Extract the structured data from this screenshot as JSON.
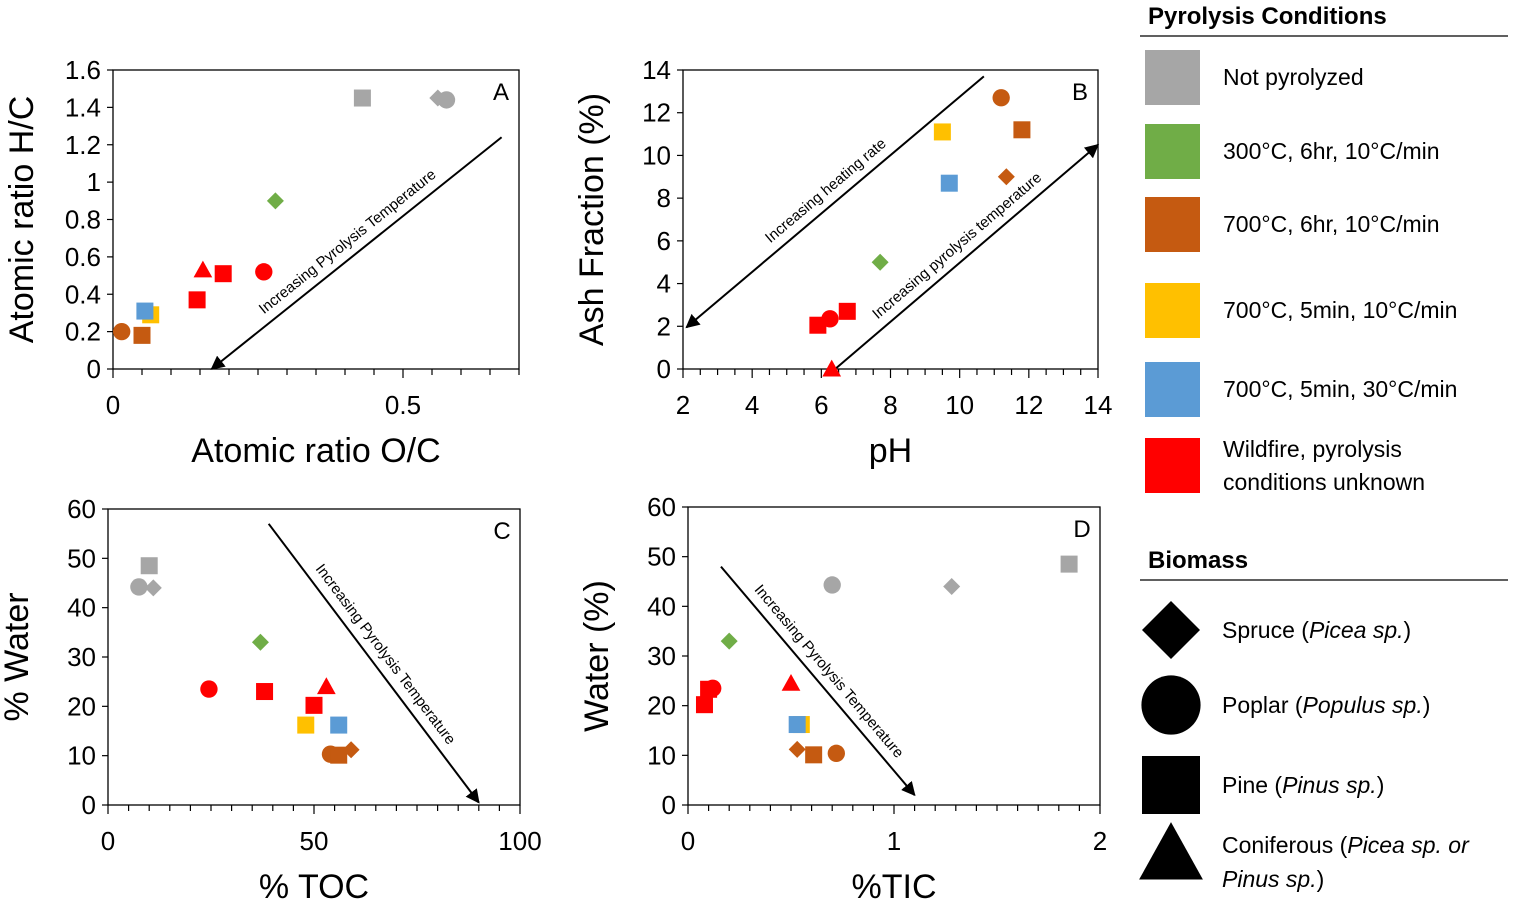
{
  "colors": {
    "not_pyrolyzed": "#a6a6a6",
    "c300_6hr": "#70ad47",
    "c700_6hr": "#c55a11",
    "c700_5min_10": "#ffc000",
    "c700_5min_30": "#5b9bd5",
    "wildfire": "#ff0000"
  },
  "legend": {
    "conditions_title": "Pyrolysis Conditions",
    "conditions": [
      {
        "key": "not_pyrolyzed",
        "label": [
          "Not pyrolyzed"
        ]
      },
      {
        "key": "c300_6hr",
        "label": [
          "300°C, 6hr, 10°C/min"
        ]
      },
      {
        "key": "c700_6hr",
        "label": [
          "700°C, 6hr, 10°C/min"
        ]
      },
      {
        "key": "c700_5min_10",
        "label": [
          "700°C, 5min, 10°C/min"
        ]
      },
      {
        "key": "c700_5min_30",
        "label": [
          "700°C, 5min, 30°C/min"
        ]
      },
      {
        "key": "wildfire",
        "label": [
          "Wildfire, pyrolysis",
          "conditions unknown"
        ]
      }
    ],
    "biomass_title": "Biomass",
    "biomass": [
      {
        "shape": "diamond",
        "name": "Spruce",
        "latin": "Picea sp."
      },
      {
        "shape": "circle",
        "name": "Poplar",
        "latin": "Populus sp."
      },
      {
        "shape": "square",
        "name": "Pine",
        "latin": "Pinus sp."
      },
      {
        "shape": "triangle",
        "name": "Coniferous",
        "latin": "Picea sp. or",
        "latin2": "Pinus sp."
      }
    ]
  },
  "chart_data": [
    {
      "type": "scatter",
      "panel": "A",
      "xlabel": "Atomic ratio O/C",
      "ylabel": "Atomic ratio H/C",
      "xlim": [
        0,
        0.7
      ],
      "ylim": [
        0,
        1.6
      ],
      "xticks": [
        0,
        0.5
      ],
      "xtick_labels": [
        "0",
        "0.5"
      ],
      "xminor": 0.05,
      "yticks": [
        0,
        0.2,
        0.4,
        0.6,
        0.8,
        1,
        1.2,
        1.4,
        1.6
      ],
      "ytick_labels": [
        "0",
        "0.2",
        "0.4",
        "0.6",
        "0.8",
        "1",
        "1.2",
        "1.4",
        "1.6"
      ],
      "annotation": {
        "text": "Increasing Pyrolysis Temperature",
        "from": [
          0.67,
          1.24
        ],
        "to": [
          0.17,
          0
        ]
      },
      "points": [
        {
          "x": 0.43,
          "y": 1.45,
          "shape": "square",
          "cond": "not_pyrolyzed"
        },
        {
          "x": 0.56,
          "y": 1.45,
          "shape": "diamond",
          "cond": "not_pyrolyzed"
        },
        {
          "x": 0.575,
          "y": 1.44,
          "shape": "circle",
          "cond": "not_pyrolyzed"
        },
        {
          "x": 0.28,
          "y": 0.9,
          "shape": "diamond",
          "cond": "c300_6hr"
        },
        {
          "x": 0.155,
          "y": 0.53,
          "shape": "triangle",
          "cond": "wildfire"
        },
        {
          "x": 0.19,
          "y": 0.51,
          "shape": "square",
          "cond": "wildfire"
        },
        {
          "x": 0.26,
          "y": 0.52,
          "shape": "circle",
          "cond": "wildfire"
        },
        {
          "x": 0.145,
          "y": 0.37,
          "shape": "square",
          "cond": "wildfire"
        },
        {
          "x": 0.065,
          "y": 0.29,
          "shape": "square",
          "cond": "c700_5min_10"
        },
        {
          "x": 0.055,
          "y": 0.31,
          "shape": "square",
          "cond": "c700_5min_30"
        },
        {
          "x": 0.015,
          "y": 0.2,
          "shape": "circle",
          "cond": "c700_6hr"
        },
        {
          "x": 0.05,
          "y": 0.18,
          "shape": "square",
          "cond": "c700_6hr"
        }
      ]
    },
    {
      "type": "scatter",
      "panel": "B",
      "xlabel": "pH",
      "ylabel": "Ash Fraction (%)",
      "xlim": [
        2,
        14
      ],
      "ylim": [
        0,
        14
      ],
      "xticks": [
        2,
        4,
        6,
        8,
        10,
        12,
        14
      ],
      "xtick_labels": [
        "2",
        "4",
        "6",
        "8",
        "10",
        "12",
        "14"
      ],
      "xminor": 0.5,
      "yticks": [
        0,
        2,
        4,
        6,
        8,
        10,
        12,
        14
      ],
      "ytick_labels": [
        "0",
        "2",
        "4",
        "6",
        "8",
        "10",
        "12",
        "14"
      ],
      "annotations": [
        {
          "text": "Increasing heating rate",
          "from": [
            10.7,
            13.7
          ],
          "to": [
            2.1,
            1.95
          ]
        },
        {
          "text": "Increasing pyrolysis temperature",
          "from": [
            6.4,
            0
          ],
          "to": [
            14,
            10.5
          ]
        }
      ],
      "points": [
        {
          "x": 11.2,
          "y": 12.7,
          "shape": "circle",
          "cond": "c700_6hr"
        },
        {
          "x": 11.8,
          "y": 11.2,
          "shape": "square",
          "cond": "c700_6hr"
        },
        {
          "x": 11.35,
          "y": 9.0,
          "shape": "diamond",
          "cond": "c700_6hr"
        },
        {
          "x": 9.5,
          "y": 11.1,
          "shape": "square",
          "cond": "c700_5min_10"
        },
        {
          "x": 9.7,
          "y": 8.7,
          "shape": "square",
          "cond": "c700_5min_30"
        },
        {
          "x": 7.7,
          "y": 5.0,
          "shape": "diamond",
          "cond": "c300_6hr"
        },
        {
          "x": 6.25,
          "y": 2.35,
          "shape": "circle",
          "cond": "wildfire"
        },
        {
          "x": 5.9,
          "y": 2.05,
          "shape": "square",
          "cond": "wildfire"
        },
        {
          "x": 6.75,
          "y": 2.7,
          "shape": "square",
          "cond": "wildfire"
        },
        {
          "x": 6.3,
          "y": 0.0,
          "shape": "triangle",
          "cond": "wildfire"
        }
      ]
    },
    {
      "type": "scatter",
      "panel": "C",
      "xlabel": "% TOC",
      "ylabel": "% Water",
      "xlim": [
        0,
        100
      ],
      "ylim": [
        0,
        60
      ],
      "xticks": [
        0,
        50,
        100
      ],
      "xtick_labels": [
        "0",
        "50",
        "100"
      ],
      "xminor": 5,
      "yticks": [
        0,
        10,
        20,
        30,
        40,
        50,
        60
      ],
      "ytick_labels": [
        "0",
        "10",
        "20",
        "30",
        "40",
        "50",
        "60"
      ],
      "annotation": {
        "text": "Increasing Pyrolysis Temperature",
        "from": [
          39,
          57
        ],
        "to": [
          90,
          0.5
        ]
      },
      "points": [
        {
          "x": 10,
          "y": 48.5,
          "shape": "square",
          "cond": "not_pyrolyzed"
        },
        {
          "x": 7.5,
          "y": 44.2,
          "shape": "circle",
          "cond": "not_pyrolyzed"
        },
        {
          "x": 11,
          "y": 44,
          "shape": "diamond",
          "cond": "not_pyrolyzed"
        },
        {
          "x": 37,
          "y": 33,
          "shape": "diamond",
          "cond": "c300_6hr"
        },
        {
          "x": 24.5,
          "y": 23.5,
          "shape": "circle",
          "cond": "wildfire"
        },
        {
          "x": 38,
          "y": 23,
          "shape": "square",
          "cond": "wildfire"
        },
        {
          "x": 53,
          "y": 24,
          "shape": "triangle",
          "cond": "wildfire"
        },
        {
          "x": 50,
          "y": 20.2,
          "shape": "square",
          "cond": "wildfire"
        },
        {
          "x": 48,
          "y": 16.2,
          "shape": "square",
          "cond": "c700_5min_10"
        },
        {
          "x": 56,
          "y": 16.2,
          "shape": "square",
          "cond": "c700_5min_30"
        },
        {
          "x": 54,
          "y": 10.3,
          "shape": "circle",
          "cond": "c700_6hr"
        },
        {
          "x": 56,
          "y": 10.1,
          "shape": "square",
          "cond": "c700_6hr"
        },
        {
          "x": 59,
          "y": 11.2,
          "shape": "diamond",
          "cond": "c700_6hr"
        }
      ]
    },
    {
      "type": "scatter",
      "panel": "D",
      "xlabel": "%TIC",
      "ylabel": "Water (%)",
      "xlim": [
        0,
        2
      ],
      "ylim": [
        0,
        60
      ],
      "xticks": [
        0,
        1,
        2
      ],
      "xtick_labels": [
        "0",
        "1",
        "2"
      ],
      "xminor": 0.1,
      "yticks": [
        0,
        10,
        20,
        30,
        40,
        50,
        60
      ],
      "ytick_labels": [
        "0",
        "10",
        "20",
        "30",
        "40",
        "50",
        "60"
      ],
      "annotation": {
        "text": "Increasing Pyrolysis Temperature",
        "from": [
          0.16,
          48
        ],
        "to": [
          1.1,
          2
        ]
      },
      "points": [
        {
          "x": 1.85,
          "y": 48.5,
          "shape": "square",
          "cond": "not_pyrolyzed"
        },
        {
          "x": 0.7,
          "y": 44.3,
          "shape": "circle",
          "cond": "not_pyrolyzed"
        },
        {
          "x": 1.28,
          "y": 44,
          "shape": "diamond",
          "cond": "not_pyrolyzed"
        },
        {
          "x": 0.2,
          "y": 33,
          "shape": "diamond",
          "cond": "c300_6hr"
        },
        {
          "x": 0.1,
          "y": 23.3,
          "shape": "square",
          "cond": "wildfire"
        },
        {
          "x": 0.12,
          "y": 23.5,
          "shape": "circle",
          "cond": "wildfire"
        },
        {
          "x": 0.5,
          "y": 24.5,
          "shape": "triangle",
          "cond": "wildfire"
        },
        {
          "x": 0.08,
          "y": 20.2,
          "shape": "square",
          "cond": "wildfire"
        },
        {
          "x": 0.55,
          "y": 16.2,
          "shape": "square",
          "cond": "c700_5min_10"
        },
        {
          "x": 0.53,
          "y": 16.2,
          "shape": "square",
          "cond": "c700_5min_30"
        },
        {
          "x": 0.53,
          "y": 11.2,
          "shape": "diamond",
          "cond": "c700_6hr"
        },
        {
          "x": 0.61,
          "y": 10.1,
          "shape": "square",
          "cond": "c700_6hr"
        },
        {
          "x": 0.72,
          "y": 10.4,
          "shape": "circle",
          "cond": "c700_6hr"
        }
      ]
    }
  ]
}
